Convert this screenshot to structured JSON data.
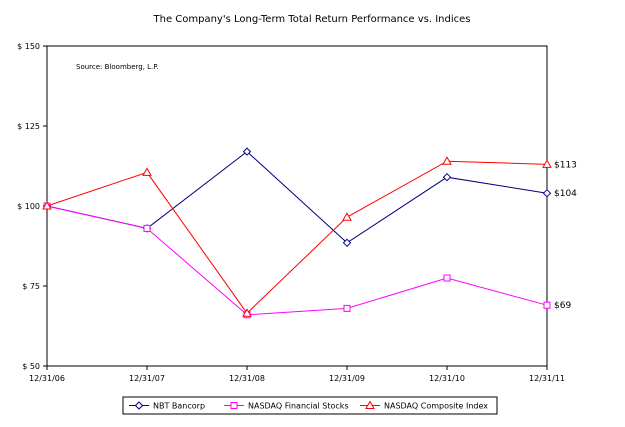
{
  "chart_data": {
    "type": "line",
    "title": "The Company's Long-Term Total Return Performance vs. Indices",
    "source_note": "Source: Bloomberg, L.P.",
    "xlabel": "",
    "ylabel": "",
    "categories": [
      "12/31/06",
      "12/31/07",
      "12/31/08",
      "12/31/09",
      "12/31/10",
      "12/31/11"
    ],
    "ylim": [
      50,
      150
    ],
    "yticks": [
      50,
      75,
      100,
      125,
      150
    ],
    "ytick_labels": [
      "$ 50",
      "$ 75",
      "$ 100",
      "$ 125",
      "$ 150"
    ],
    "grid": false,
    "legend_position": "bottom",
    "series": [
      {
        "name": "NBT Bancorp",
        "values": [
          100,
          93,
          117,
          88.5,
          109,
          104
        ],
        "color": "#000080",
        "marker": "diamond",
        "end_label": "$104"
      },
      {
        "name": "NASDAQ Financial Stocks",
        "values": [
          100,
          93,
          66,
          68,
          77.5,
          69
        ],
        "color": "#ff00ff",
        "marker": "square",
        "end_label": "$69"
      },
      {
        "name": "NASDAQ Composite Index",
        "values": [
          100,
          110.5,
          66.5,
          96.5,
          114,
          113
        ],
        "color": "#ff0000",
        "marker": "triangle",
        "end_label": "$113"
      }
    ]
  }
}
